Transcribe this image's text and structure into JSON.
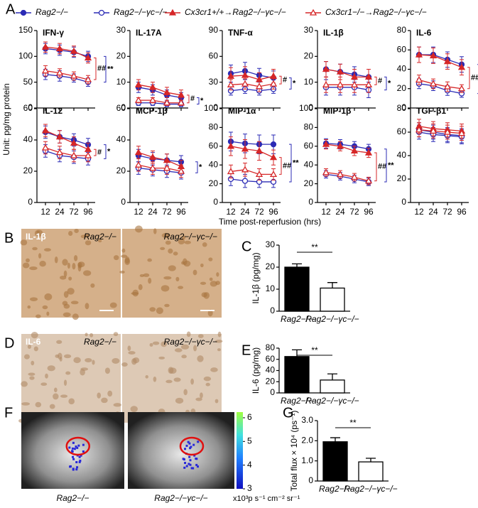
{
  "panel_labels": [
    "A",
    "B",
    "C",
    "D",
    "E",
    "F",
    "G"
  ],
  "legend": [
    {
      "name": "Rag2−/−",
      "color": "#2b2bb5",
      "marker": "circle",
      "filled": true
    },
    {
      "name": "Rag2−/−γc−/−",
      "color": "#2b2bb5",
      "marker": "circle",
      "filled": false
    },
    {
      "name": "Cx3cr1+/+→Rag2−/−γc−/−",
      "color": "#d62728",
      "marker": "triangle",
      "filled": true
    },
    {
      "name": "Cx3cr1−/−→Rag2−/−γc−/−",
      "color": "#d62728",
      "marker": "triangle",
      "filled": false
    }
  ],
  "y_axis_label": "Unit: pg/mg protein",
  "x_axis_label": "Time post-reperfusion (hrs)",
  "chart_data": [
    {
      "type": "line",
      "title": "IFN-γ",
      "ylim": [
        0,
        150
      ],
      "yticks": [
        0,
        50,
        100,
        150
      ],
      "series": [
        {
          "values": [
            115,
            112,
            108,
            100
          ],
          "errors": [
            10,
            10,
            10,
            10
          ]
        },
        {
          "values": [
            65,
            62,
            58,
            50
          ],
          "errors": [
            10,
            10,
            8,
            8
          ]
        },
        {
          "values": [
            118,
            115,
            110,
            97
          ],
          "errors": [
            10,
            10,
            10,
            10
          ]
        },
        {
          "values": [
            72,
            68,
            62,
            55
          ],
          "errors": [
            10,
            8,
            8,
            8
          ]
        }
      ],
      "annotations": [
        {
          "text": "##",
          "color": "#d62728"
        },
        {
          "text": "**",
          "color": "#2b2bb5"
        }
      ]
    },
    {
      "type": "line",
      "title": "IL-17A",
      "ylim": [
        0,
        30
      ],
      "yticks": [
        0,
        10,
        20,
        30
      ],
      "series": [
        {
          "values": [
            8,
            7,
            5,
            4
          ],
          "errors": [
            2,
            2,
            2,
            2
          ]
        },
        {
          "values": [
            2,
            2,
            1.5,
            1.5
          ],
          "errors": [
            1,
            1,
            1,
            1
          ]
        },
        {
          "values": [
            9,
            8,
            6,
            5
          ],
          "errors": [
            2,
            2,
            2,
            2
          ]
        },
        {
          "values": [
            3,
            3,
            2,
            2
          ],
          "errors": [
            1,
            1,
            1,
            1
          ]
        }
      ],
      "annotations": [
        {
          "text": "#",
          "color": "#d62728"
        },
        {
          "text": "*",
          "color": "#2b2bb5"
        }
      ]
    },
    {
      "type": "line",
      "title": "TNF-α",
      "ylim": [
        0,
        90
      ],
      "yticks": [
        0,
        30,
        60,
        90
      ],
      "series": [
        {
          "values": [
            40,
            43,
            38,
            35
          ],
          "errors": [
            10,
            10,
            8,
            8
          ]
        },
        {
          "values": [
            20,
            22,
            20,
            22
          ],
          "errors": [
            5,
            5,
            5,
            5
          ]
        },
        {
          "values": [
            37,
            38,
            33,
            37
          ],
          "errors": [
            10,
            10,
            8,
            8
          ]
        },
        {
          "values": [
            27,
            28,
            25,
            28
          ],
          "errors": [
            6,
            6,
            6,
            6
          ]
        }
      ],
      "annotations": [
        {
          "text": "#",
          "color": "#d62728"
        },
        {
          "text": "*",
          "color": "#2b2bb5"
        }
      ]
    },
    {
      "type": "line",
      "title": "IL-1β",
      "ylim": [
        0,
        30
      ],
      "yticks": [
        0,
        10,
        20,
        30
      ],
      "series": [
        {
          "values": [
            15,
            14,
            13,
            12
          ],
          "errors": [
            3,
            3,
            3,
            3
          ]
        },
        {
          "values": [
            8,
            8,
            8,
            7
          ],
          "errors": [
            3,
            3,
            3,
            3
          ]
        },
        {
          "values": [
            15,
            14,
            12,
            12
          ],
          "errors": [
            3,
            3,
            3,
            3
          ]
        },
        {
          "values": [
            9,
            9,
            9,
            9
          ],
          "errors": [
            3,
            3,
            3,
            3
          ]
        }
      ],
      "annotations": [
        {
          "text": "#",
          "color": "#d62728"
        },
        {
          "text": "*",
          "color": "#2b2bb5"
        }
      ]
    },
    {
      "type": "line",
      "title": "IL-6",
      "ylim": [
        0,
        80
      ],
      "yticks": [
        0,
        20,
        40,
        60,
        80
      ],
      "series": [
        {
          "values": [
            55,
            55,
            50,
            45
          ],
          "errors": [
            8,
            8,
            8,
            8
          ]
        },
        {
          "values": [
            25,
            23,
            18,
            15
          ],
          "errors": [
            5,
            5,
            5,
            4
          ]
        },
        {
          "values": [
            55,
            54,
            48,
            42
          ],
          "errors": [
            8,
            8,
            8,
            8
          ]
        },
        {
          "values": [
            29,
            25,
            22,
            20
          ],
          "errors": [
            5,
            5,
            5,
            4
          ]
        }
      ],
      "annotations": [
        {
          "text": "##",
          "color": "#d62728"
        },
        {
          "text": "**",
          "color": "#2b2bb5"
        }
      ]
    },
    {
      "type": "line",
      "title": "IL-12",
      "ylim": [
        0,
        60
      ],
      "yticks": [
        0,
        20,
        40,
        60
      ],
      "categories": [
        "12",
        "24",
        "72",
        "96"
      ],
      "series": [
        {
          "values": [
            45,
            42,
            40,
            37
          ],
          "errors": [
            4,
            4,
            4,
            4
          ]
        },
        {
          "values": [
            33,
            30,
            29,
            28
          ],
          "errors": [
            4,
            4,
            4,
            4
          ]
        },
        {
          "values": [
            46,
            42,
            38,
            34
          ],
          "errors": [
            4,
            4,
            4,
            4
          ]
        },
        {
          "values": [
            35,
            32,
            30,
            30
          ],
          "errors": [
            4,
            4,
            4,
            4
          ]
        }
      ],
      "annotations": [
        {
          "text": "#",
          "color": "#d62728"
        },
        {
          "text": "*",
          "color": "#2b2bb5"
        }
      ]
    },
    {
      "type": "line",
      "title": "MCP-1β",
      "ylim": [
        0,
        60
      ],
      "yticks": [
        0,
        20,
        40,
        60
      ],
      "categories": [
        "12",
        "24",
        "72",
        "96"
      ],
      "series": [
        {
          "values": [
            30,
            28,
            27,
            26
          ],
          "errors": [
            4,
            4,
            4,
            4
          ]
        },
        {
          "values": [
            22,
            21,
            20,
            19
          ],
          "errors": [
            4,
            4,
            4,
            4
          ]
        },
        {
          "values": [
            32,
            29,
            27,
            23
          ],
          "errors": [
            4,
            4,
            4,
            4
          ]
        },
        {
          "values": [
            24,
            22,
            22,
            20
          ],
          "errors": [
            4,
            4,
            4,
            4
          ]
        }
      ],
      "annotations": [
        {
          "text": "*",
          "color": "#2b2bb5"
        }
      ]
    },
    {
      "type": "line",
      "title": "MIP-1α",
      "ylim": [
        0,
        100
      ],
      "yticks": [
        0,
        20,
        40,
        60,
        80,
        100
      ],
      "categories": [
        "12",
        "24",
        "72",
        "96"
      ],
      "series": [
        {
          "values": [
            65,
            63,
            62,
            62
          ],
          "errors": [
            10,
            10,
            10,
            10
          ]
        },
        {
          "values": [
            25,
            23,
            22,
            22
          ],
          "errors": [
            7,
            7,
            6,
            6
          ]
        },
        {
          "values": [
            60,
            57,
            55,
            48
          ],
          "errors": [
            10,
            10,
            10,
            8
          ]
        },
        {
          "values": [
            33,
            35,
            30,
            30
          ],
          "errors": [
            7,
            7,
            6,
            6
          ]
        }
      ],
      "annotations": [
        {
          "text": "##",
          "color": "#d62728"
        },
        {
          "text": "**",
          "color": "#2b2bb5"
        }
      ]
    },
    {
      "type": "line",
      "title": "MIP-1β",
      "ylim": [
        0,
        100
      ],
      "yticks": [
        0,
        20,
        40,
        60,
        80,
        100
      ],
      "categories": [
        "12",
        "24",
        "72",
        "96"
      ],
      "series": [
        {
          "values": [
            63,
            62,
            60,
            57
          ],
          "errors": [
            5,
            5,
            5,
            5
          ]
        },
        {
          "values": [
            30,
            28,
            25,
            22
          ],
          "errors": [
            4,
            4,
            4,
            4
          ]
        },
        {
          "values": [
            62,
            60,
            55,
            53
          ],
          "errors": [
            5,
            5,
            5,
            5
          ]
        },
        {
          "values": [
            32,
            30,
            27,
            23
          ],
          "errors": [
            4,
            4,
            4,
            4
          ]
        }
      ],
      "annotations": [
        {
          "text": "##",
          "color": "#d62728"
        },
        {
          "text": "**",
          "color": "#2b2bb5"
        }
      ]
    },
    {
      "type": "line",
      "title": "TGF-β1",
      "ylim": [
        0,
        80
      ],
      "yticks": [
        0,
        20,
        40,
        60,
        80
      ],
      "categories": [
        "12",
        "24",
        "72",
        "96"
      ],
      "series": [
        {
          "values": [
            62,
            60,
            58,
            57
          ],
          "errors": [
            6,
            6,
            6,
            6
          ]
        },
        {
          "values": [
            60,
            58,
            57,
            56
          ],
          "errors": [
            6,
            6,
            6,
            6
          ]
        },
        {
          "values": [
            65,
            63,
            62,
            61
          ],
          "errors": [
            6,
            6,
            6,
            6
          ]
        },
        {
          "values": [
            62,
            61,
            60,
            59
          ],
          "errors": [
            6,
            6,
            6,
            6
          ]
        }
      ],
      "annotations": []
    },
    {
      "type": "bar",
      "y_label": "IL-1β (pg/mg)",
      "ylim": [
        0,
        30
      ],
      "yticks": [
        0,
        10,
        20,
        30
      ],
      "categories": [
        "Rag2−/−",
        "Rag2−/−γc−/−"
      ],
      "values": [
        20,
        10.5
      ],
      "errors": [
        1.5,
        2.5
      ],
      "colors": [
        "#000000",
        "#ffffff"
      ],
      "significance": "**"
    },
    {
      "type": "bar",
      "y_label": "IL-6 (pg/mg)",
      "ylim": [
        0,
        80
      ],
      "yticks": [
        0,
        20,
        40,
        60,
        80
      ],
      "categories": [
        "Rag2−/−",
        "Rag2−/−γc−/−"
      ],
      "values": [
        65,
        23
      ],
      "errors": [
        12,
        11
      ],
      "colors": [
        "#000000",
        "#ffffff"
      ],
      "significance": "**"
    },
    {
      "type": "bar",
      "y_label": "Total flux × 10⁴ (ps⁻¹)",
      "ylim": [
        0,
        3
      ],
      "yticks": [
        0,
        {
          "value": 1,
          "label": "1.0"
        },
        {
          "value": 2,
          "label": "2.0"
        },
        {
          "value": 3,
          "label": "3.0"
        }
      ],
      "categories": [
        "Rag2−/−",
        "Rag2−/−γc−/−"
      ],
      "values": [
        1.95,
        0.95
      ],
      "errors": [
        0.2,
        0.18
      ],
      "colors": [
        "#000000",
        "#ffffff"
      ],
      "significance": "**"
    }
  ],
  "images": {
    "B": {
      "stain": "IL-1β",
      "left": "Rag2−/−",
      "right": "Rag2−/−γc−/−"
    },
    "D": {
      "stain": "IL-6",
      "left": "Rag2−/−",
      "right": "Rag2−/−γc−/−"
    },
    "F": {
      "left": "Rag2−/−",
      "right": "Rag2−/−γc−/−",
      "colorbar_ticks": [
        3,
        4,
        5,
        6
      ],
      "colorbar_label": "x10³p s⁻¹ cm⁻² sr⁻¹"
    }
  }
}
